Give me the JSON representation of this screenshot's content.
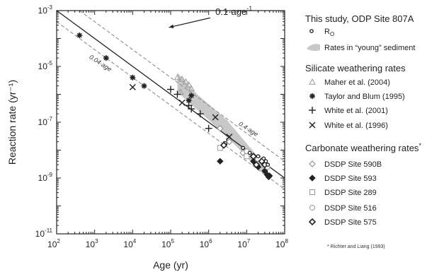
{
  "chart_data": {
    "type": "scatter",
    "xlabel": "Age (yr)",
    "ylabel": "Reaction rate (yr⁻¹)",
    "xscale": "log",
    "yscale": "log",
    "xlim": [
      100,
      100000000
    ],
    "ylim": [
      1e-11,
      0.001
    ],
    "grid": false,
    "legend_position": "right",
    "x_tick_labels": [
      {
        "x": 100,
        "base": "10",
        "exp": "2"
      },
      {
        "x": 1000,
        "base": "10",
        "exp": "3"
      },
      {
        "x": 10000,
        "base": "10",
        "exp": "4"
      },
      {
        "x": 100000,
        "base": "10",
        "exp": "5"
      },
      {
        "x": 1000000,
        "base": "10",
        "exp": "6"
      },
      {
        "x": 10000000,
        "base": "10",
        "exp": "7"
      },
      {
        "x": 100000000,
        "base": "10",
        "exp": "8"
      }
    ],
    "y_tick_labels": [
      {
        "y": 0.001,
        "base": "10",
        "exp": "-3"
      },
      {
        "y": 1e-05,
        "base": "10",
        "exp": "-5"
      },
      {
        "y": 1e-07,
        "base": "10",
        "exp": "-7"
      },
      {
        "y": 1e-09,
        "base": "10",
        "exp": "-9"
      },
      {
        "y": 1e-11,
        "base": "10",
        "exp": "-11"
      }
    ],
    "lines": [
      {
        "coef": 0.1,
        "style": "solid",
        "color": "#222222"
      },
      {
        "coef": 0.04,
        "style": "dashed",
        "color": "#9a8a8a"
      },
      {
        "coef": 0.4,
        "style": "dashed",
        "color": "#9a8a8a"
      }
    ],
    "annotations": [
      {
        "text": "0.1·age",
        "sup": "-1",
        "x": 1500000,
        "y": 0.0007,
        "style": "large"
      },
      {
        "text": "0.04·age",
        "x": 700,
        "y": 2e-05,
        "rotate": 33,
        "style": "small"
      },
      {
        "text": "0.4·age",
        "x": 6000000,
        "y": 8e-08,
        "rotate": 33,
        "style": "small"
      }
    ],
    "arrow": {
      "from": [
        1100000,
        0.00055
      ],
      "to": [
        90000,
        0.00025
      ]
    },
    "shaded_band": [
      [
        150000,
        6e-06
      ],
      [
        500000,
        1e-06
      ],
      [
        3000000,
        1.2e-07
      ],
      [
        30000000,
        3e-09
      ],
      [
        30000000,
        1.2e-09
      ],
      [
        5000000,
        1.5e-08
      ],
      [
        1000000,
        1.2e-07
      ],
      [
        150000,
        1.2e-06
      ]
    ],
    "series": [
      {
        "name": "Maher et al. (2004)",
        "marker": "triangle",
        "color": "#999999",
        "points": [
          [
            150000,
            4e-06
          ],
          [
            200000,
            3.5e-06
          ],
          [
            250000,
            2.8e-06
          ],
          [
            300000,
            2.2e-06
          ],
          [
            180000,
            1.2e-06
          ],
          [
            350000,
            1.6e-06
          ]
        ]
      },
      {
        "name": "Taylor and Blum (1995)",
        "marker": "asterisk",
        "color": "#222222",
        "points": [
          [
            400,
            0.00013
          ],
          [
            2000,
            2e-05
          ],
          [
            10000,
            4e-06
          ],
          [
            20000,
            2e-06
          ],
          [
            300000,
            6e-07
          ],
          [
            350000,
            9e-07
          ]
        ]
      },
      {
        "name": "White et al. (2001)",
        "marker": "plus",
        "color": "#222222",
        "points": [
          [
            100000,
            1.5e-06
          ],
          [
            150000,
            1e-06
          ],
          [
            300000,
            4e-07
          ],
          [
            350000,
            3e-07
          ],
          [
            600000,
            2e-07
          ],
          [
            1000000,
            6e-08
          ],
          [
            3000000,
            2e-08
          ]
        ]
      },
      {
        "name": "White et al. (1996)",
        "marker": "x",
        "color": "#222222",
        "points": [
          [
            10000,
            1.8e-06
          ],
          [
            200000,
            5e-07
          ],
          [
            1500000,
            1.5e-07
          ],
          [
            3500000,
            3e-08
          ]
        ]
      },
      {
        "name": "DSDP Site 590B",
        "marker": "diamond-open",
        "color": "#888888",
        "points": [
          [
            2000000,
            6e-08
          ],
          [
            3500000,
            2e-08
          ],
          [
            8000000,
            8e-09
          ],
          [
            15000000,
            4e-09
          ]
        ]
      },
      {
        "name": "DSDP Site 593",
        "marker": "diamond-filled",
        "color": "#222222",
        "points": [
          [
            2000000,
            4e-09
          ],
          [
            15000000,
            4e-09
          ],
          [
            20000000,
            2.5e-09
          ],
          [
            30000000,
            1.8e-09
          ],
          [
            35000000,
            1.3e-09
          ],
          [
            38000000,
            1.1e-09
          ],
          [
            40000000,
            1.2e-09
          ]
        ]
      },
      {
        "name": "DSDP Site 289",
        "marker": "square",
        "color": "#999999",
        "points": [
          [
            2000000,
            1.2e-08
          ],
          [
            10000000,
            6e-09
          ],
          [
            20000000,
            5e-09
          ],
          [
            30000000,
            3e-09
          ]
        ]
      },
      {
        "name": "DSDP Site 516",
        "marker": "circle",
        "color": "#999999",
        "points": [
          [
            10000000,
            9e-09
          ],
          [
            15000000,
            6e-09
          ],
          [
            25000000,
            4e-09
          ],
          [
            35000000,
            2.5e-09
          ]
        ]
      },
      {
        "name": "DSDP Site 575",
        "marker": "diamond-open-bold",
        "color": "#222222",
        "points": [
          [
            2500000,
            1.5e-08
          ],
          [
            15000000,
            6e-09
          ],
          [
            18000000,
            3e-09
          ],
          [
            25000000,
            4e-09
          ],
          [
            30000000,
            3e-09
          ]
        ]
      },
      {
        "name": "R₀",
        "marker": "dot",
        "color": "#222222",
        "points": [
          [
            8000000,
            1.2e-08
          ],
          [
            12000000,
            8e-09
          ],
          [
            20000000,
            6e-09
          ],
          [
            28000000,
            5e-09
          ],
          [
            32000000,
            4e-09
          ],
          [
            36000000,
            3e-09
          ]
        ]
      }
    ]
  },
  "legend": {
    "study_title": "This study, ODP Site 807A",
    "r0_base": "R",
    "r0_sub": "O",
    "young_label": "Rates in “young” sediment",
    "silicate_title": "Silicate weathering rates",
    "carbonate_title": "Carbonate weathering rates",
    "carbonate_mark": "*",
    "footnote": "* Richter and Liang (1993)",
    "items": [
      {
        "key": "maher",
        "label": "Maher et al. (2004)",
        "marker": "triangle",
        "color": "#999999"
      },
      {
        "key": "taylor",
        "label": "Taylor and Blum (1995)",
        "marker": "asterisk",
        "color": "#222222"
      },
      {
        "key": "white2001",
        "label": "White et al. (2001)",
        "marker": "plus",
        "color": "#222222"
      },
      {
        "key": "white1996",
        "label": "White et al. (1996)",
        "marker": "x",
        "color": "#222222"
      },
      {
        "key": "590b",
        "label": "DSDP Site 590B",
        "marker": "diamond-open",
        "color": "#888888"
      },
      {
        "key": "593",
        "label": "DSDP Site 593",
        "marker": "diamond-filled",
        "color": "#222222"
      },
      {
        "key": "289",
        "label": "DSDP Site 289",
        "marker": "square",
        "color": "#999999"
      },
      {
        "key": "516",
        "label": "DSDP Site 516",
        "marker": "circle",
        "color": "#999999"
      },
      {
        "key": "575",
        "label": "DSDP Site 575",
        "marker": "diamond-open-bold",
        "color": "#222222"
      }
    ]
  },
  "colors": {
    "band": "#c8c8c8",
    "axis": "#222222",
    "dashed": "#9a8a8a"
  }
}
